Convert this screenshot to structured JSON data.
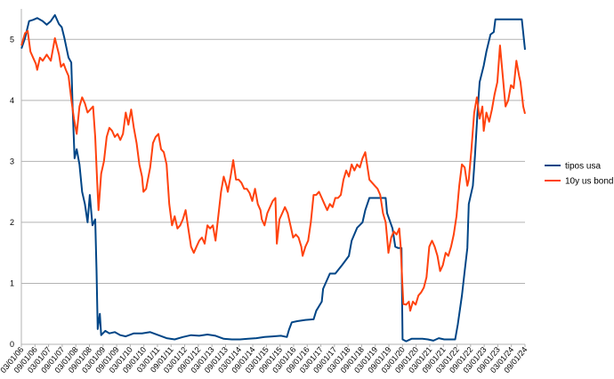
{
  "chart_data": {
    "type": "line",
    "title": "",
    "xlabel": "",
    "ylabel": "",
    "ylim": [
      0,
      5.5
    ],
    "yticks": [
      0,
      1,
      2,
      3,
      4,
      5
    ],
    "grid": "horizontal",
    "legend_position": "right",
    "x_range": [
      2006.167,
      2024.667
    ],
    "x_tick_labels": [
      "03/01/06",
      "09/01/06",
      "03/01/07",
      "09/01/07",
      "03/01/08",
      "09/01/08",
      "03/01/09",
      "09/01/09",
      "03/01/10",
      "09/01/10",
      "03/01/11",
      "09/01/11",
      "03/01/12",
      "09/01/12",
      "03/01/13",
      "09/01/13",
      "03/01/14",
      "09/01/14",
      "03/01/15",
      "09/01/15",
      "03/01/16",
      "09/01/16",
      "03/01/17",
      "09/01/17",
      "03/01/18",
      "09/01/18",
      "03/01/19",
      "09/01/19",
      "03/01/20",
      "09/01/20",
      "03/01/21",
      "09/01/21",
      "03/01/22",
      "09/01/22",
      "03/01/23",
      "09/01/23",
      "03/01/24",
      "09/01/24"
    ],
    "series": [
      {
        "name": "tipos usa",
        "color": "#004586",
        "points": [
          [
            2006.17,
            4.85
          ],
          [
            2006.3,
            5.02
          ],
          [
            2006.45,
            5.3
          ],
          [
            2006.6,
            5.32
          ],
          [
            2006.75,
            5.35
          ],
          [
            2006.95,
            5.3
          ],
          [
            2007.1,
            5.24
          ],
          [
            2007.25,
            5.3
          ],
          [
            2007.4,
            5.4
          ],
          [
            2007.55,
            5.25
          ],
          [
            2007.65,
            5.2
          ],
          [
            2007.75,
            5.02
          ],
          [
            2007.9,
            4.7
          ],
          [
            2008.0,
            4.62
          ],
          [
            2008.05,
            3.9
          ],
          [
            2008.12,
            3.05
          ],
          [
            2008.2,
            3.2
          ],
          [
            2008.3,
            2.95
          ],
          [
            2008.4,
            2.5
          ],
          [
            2008.5,
            2.3
          ],
          [
            2008.6,
            2.0
          ],
          [
            2008.68,
            2.45
          ],
          [
            2008.78,
            1.95
          ],
          [
            2008.88,
            2.05
          ],
          [
            2008.93,
            1.2
          ],
          [
            2008.97,
            0.25
          ],
          [
            2009.05,
            0.5
          ],
          [
            2009.1,
            0.15
          ],
          [
            2009.25,
            0.22
          ],
          [
            2009.4,
            0.18
          ],
          [
            2009.6,
            0.2
          ],
          [
            2009.8,
            0.15
          ],
          [
            2010.0,
            0.13
          ],
          [
            2010.3,
            0.18
          ],
          [
            2010.6,
            0.18
          ],
          [
            2010.9,
            0.2
          ],
          [
            2011.2,
            0.15
          ],
          [
            2011.5,
            0.1
          ],
          [
            2011.8,
            0.08
          ],
          [
            2012.1,
            0.12
          ],
          [
            2012.4,
            0.15
          ],
          [
            2012.7,
            0.14
          ],
          [
            2013.0,
            0.16
          ],
          [
            2013.3,
            0.14
          ],
          [
            2013.6,
            0.09
          ],
          [
            2013.9,
            0.08
          ],
          [
            2014.2,
            0.08
          ],
          [
            2014.5,
            0.09
          ],
          [
            2014.8,
            0.1
          ],
          [
            2015.1,
            0.12
          ],
          [
            2015.4,
            0.13
          ],
          [
            2015.7,
            0.14
          ],
          [
            2015.92,
            0.12
          ],
          [
            2016.0,
            0.24
          ],
          [
            2016.1,
            0.36
          ],
          [
            2016.3,
            0.38
          ],
          [
            2016.6,
            0.4
          ],
          [
            2016.9,
            0.41
          ],
          [
            2017.0,
            0.55
          ],
          [
            2017.2,
            0.7
          ],
          [
            2017.25,
            0.91
          ],
          [
            2017.5,
            1.16
          ],
          [
            2017.7,
            1.16
          ],
          [
            2017.95,
            1.3
          ],
          [
            2018.2,
            1.45
          ],
          [
            2018.3,
            1.7
          ],
          [
            2018.5,
            1.91
          ],
          [
            2018.7,
            2.0
          ],
          [
            2018.8,
            2.2
          ],
          [
            2018.95,
            2.4
          ],
          [
            2019.3,
            2.4
          ],
          [
            2019.55,
            2.4
          ],
          [
            2019.6,
            2.15
          ],
          [
            2019.8,
            1.9
          ],
          [
            2019.9,
            1.6
          ],
          [
            2020.0,
            1.58
          ],
          [
            2020.13,
            1.58
          ],
          [
            2020.17,
            0.08
          ],
          [
            2020.3,
            0.05
          ],
          [
            2020.5,
            0.09
          ],
          [
            2020.7,
            0.09
          ],
          [
            2020.9,
            0.09
          ],
          [
            2021.1,
            0.08
          ],
          [
            2021.3,
            0.06
          ],
          [
            2021.5,
            0.1
          ],
          [
            2021.7,
            0.08
          ],
          [
            2021.9,
            0.08
          ],
          [
            2022.1,
            0.08
          ],
          [
            2022.2,
            0.33
          ],
          [
            2022.35,
            0.8
          ],
          [
            2022.45,
            1.2
          ],
          [
            2022.55,
            1.58
          ],
          [
            2022.6,
            2.3
          ],
          [
            2022.75,
            2.6
          ],
          [
            2022.83,
            3.1
          ],
          [
            2022.92,
            3.8
          ],
          [
            2023.0,
            4.3
          ],
          [
            2023.15,
            4.57
          ],
          [
            2023.25,
            4.8
          ],
          [
            2023.4,
            5.08
          ],
          [
            2023.52,
            5.12
          ],
          [
            2023.58,
            5.33
          ],
          [
            2023.75,
            5.33
          ],
          [
            2024.0,
            5.33
          ],
          [
            2024.25,
            5.33
          ],
          [
            2024.55,
            5.33
          ],
          [
            2024.667,
            4.83
          ]
        ]
      },
      {
        "name": "10y us bond",
        "color": "#ff420e",
        "points": [
          [
            2006.17,
            4.9
          ],
          [
            2006.3,
            5.1
          ],
          [
            2006.4,
            5.14
          ],
          [
            2006.5,
            4.8
          ],
          [
            2006.6,
            4.7
          ],
          [
            2006.7,
            4.6
          ],
          [
            2006.75,
            4.5
          ],
          [
            2006.85,
            4.7
          ],
          [
            2006.95,
            4.65
          ],
          [
            2007.1,
            4.75
          ],
          [
            2007.25,
            4.65
          ],
          [
            2007.4,
            5.02
          ],
          [
            2007.55,
            4.75
          ],
          [
            2007.62,
            4.55
          ],
          [
            2007.72,
            4.6
          ],
          [
            2007.8,
            4.5
          ],
          [
            2007.9,
            4.4
          ],
          [
            2008.0,
            4.02
          ],
          [
            2008.1,
            3.7
          ],
          [
            2008.2,
            3.45
          ],
          [
            2008.3,
            3.9
          ],
          [
            2008.4,
            4.05
          ],
          [
            2008.5,
            3.95
          ],
          [
            2008.6,
            3.8
          ],
          [
            2008.7,
            3.85
          ],
          [
            2008.8,
            3.9
          ],
          [
            2008.88,
            3.4
          ],
          [
            2008.95,
            2.7
          ],
          [
            2009.0,
            2.2
          ],
          [
            2009.1,
            2.8
          ],
          [
            2009.2,
            3.0
          ],
          [
            2009.3,
            3.4
          ],
          [
            2009.4,
            3.55
          ],
          [
            2009.5,
            3.5
          ],
          [
            2009.6,
            3.4
          ],
          [
            2009.7,
            3.45
          ],
          [
            2009.8,
            3.35
          ],
          [
            2009.9,
            3.45
          ],
          [
            2010.0,
            3.8
          ],
          [
            2010.1,
            3.6
          ],
          [
            2010.2,
            3.85
          ],
          [
            2010.3,
            3.55
          ],
          [
            2010.4,
            3.3
          ],
          [
            2010.5,
            2.95
          ],
          [
            2010.6,
            2.75
          ],
          [
            2010.65,
            2.5
          ],
          [
            2010.75,
            2.55
          ],
          [
            2010.9,
            2.9
          ],
          [
            2011.0,
            3.3
          ],
          [
            2011.1,
            3.4
          ],
          [
            2011.2,
            3.45
          ],
          [
            2011.3,
            3.2
          ],
          [
            2011.4,
            3.15
          ],
          [
            2011.5,
            2.95
          ],
          [
            2011.6,
            2.3
          ],
          [
            2011.7,
            1.95
          ],
          [
            2011.8,
            2.1
          ],
          [
            2011.9,
            1.9
          ],
          [
            2012.0,
            1.95
          ],
          [
            2012.1,
            2.05
          ],
          [
            2012.2,
            2.2
          ],
          [
            2012.3,
            1.9
          ],
          [
            2012.4,
            1.6
          ],
          [
            2012.5,
            1.5
          ],
          [
            2012.6,
            1.6
          ],
          [
            2012.7,
            1.7
          ],
          [
            2012.8,
            1.75
          ],
          [
            2012.9,
            1.65
          ],
          [
            2013.0,
            1.95
          ],
          [
            2013.1,
            1.9
          ],
          [
            2013.2,
            1.95
          ],
          [
            2013.3,
            1.7
          ],
          [
            2013.4,
            2.1
          ],
          [
            2013.5,
            2.5
          ],
          [
            2013.6,
            2.75
          ],
          [
            2013.7,
            2.6
          ],
          [
            2013.75,
            2.5
          ],
          [
            2013.85,
            2.75
          ],
          [
            2013.95,
            3.02
          ],
          [
            2014.05,
            2.7
          ],
          [
            2014.15,
            2.7
          ],
          [
            2014.25,
            2.65
          ],
          [
            2014.35,
            2.55
          ],
          [
            2014.45,
            2.55
          ],
          [
            2014.55,
            2.48
          ],
          [
            2014.65,
            2.35
          ],
          [
            2014.75,
            2.55
          ],
          [
            2014.85,
            2.3
          ],
          [
            2014.95,
            2.2
          ],
          [
            2015.0,
            2.05
          ],
          [
            2015.1,
            1.95
          ],
          [
            2015.2,
            2.15
          ],
          [
            2015.3,
            2.25
          ],
          [
            2015.4,
            2.35
          ],
          [
            2015.5,
            2.4
          ],
          [
            2015.55,
            1.65
          ],
          [
            2015.65,
            2.05
          ],
          [
            2015.75,
            2.15
          ],
          [
            2015.85,
            2.25
          ],
          [
            2015.95,
            2.15
          ],
          [
            2016.05,
            1.95
          ],
          [
            2016.15,
            1.75
          ],
          [
            2016.25,
            1.8
          ],
          [
            2016.35,
            1.75
          ],
          [
            2016.45,
            1.6
          ],
          [
            2016.5,
            1.45
          ],
          [
            2016.6,
            1.6
          ],
          [
            2016.7,
            1.7
          ],
          [
            2016.8,
            2.0
          ],
          [
            2016.9,
            2.45
          ],
          [
            2017.0,
            2.45
          ],
          [
            2017.1,
            2.5
          ],
          [
            2017.2,
            2.4
          ],
          [
            2017.3,
            2.3
          ],
          [
            2017.4,
            2.2
          ],
          [
            2017.5,
            2.3
          ],
          [
            2017.6,
            2.25
          ],
          [
            2017.7,
            2.4
          ],
          [
            2017.8,
            2.4
          ],
          [
            2017.9,
            2.45
          ],
          [
            2018.0,
            2.7
          ],
          [
            2018.1,
            2.85
          ],
          [
            2018.2,
            2.75
          ],
          [
            2018.3,
            2.95
          ],
          [
            2018.4,
            2.85
          ],
          [
            2018.5,
            2.95
          ],
          [
            2018.6,
            2.9
          ],
          [
            2018.7,
            3.05
          ],
          [
            2018.8,
            3.15
          ],
          [
            2018.85,
            3.0
          ],
          [
            2018.95,
            2.7
          ],
          [
            2019.05,
            2.65
          ],
          [
            2019.15,
            2.6
          ],
          [
            2019.25,
            2.55
          ],
          [
            2019.35,
            2.45
          ],
          [
            2019.45,
            2.15
          ],
          [
            2019.55,
            2.0
          ],
          [
            2019.6,
            1.75
          ],
          [
            2019.65,
            1.5
          ],
          [
            2019.75,
            1.75
          ],
          [
            2019.85,
            1.85
          ],
          [
            2019.95,
            1.8
          ],
          [
            2020.05,
            1.9
          ],
          [
            2020.1,
            1.6
          ],
          [
            2020.15,
            1.1
          ],
          [
            2020.2,
            0.66
          ],
          [
            2020.3,
            0.65
          ],
          [
            2020.4,
            0.7
          ],
          [
            2020.45,
            0.55
          ],
          [
            2020.55,
            0.7
          ],
          [
            2020.65,
            0.65
          ],
          [
            2020.75,
            0.8
          ],
          [
            2020.85,
            0.85
          ],
          [
            2020.95,
            0.93
          ],
          [
            2021.05,
            1.1
          ],
          [
            2021.15,
            1.6
          ],
          [
            2021.25,
            1.7
          ],
          [
            2021.35,
            1.6
          ],
          [
            2021.45,
            1.45
          ],
          [
            2021.55,
            1.2
          ],
          [
            2021.65,
            1.3
          ],
          [
            2021.75,
            1.5
          ],
          [
            2021.85,
            1.45
          ],
          [
            2021.95,
            1.6
          ],
          [
            2022.05,
            1.8
          ],
          [
            2022.15,
            2.1
          ],
          [
            2022.25,
            2.6
          ],
          [
            2022.35,
            2.95
          ],
          [
            2022.45,
            2.9
          ],
          [
            2022.55,
            2.6
          ],
          [
            2022.6,
            2.7
          ],
          [
            2022.7,
            3.2
          ],
          [
            2022.8,
            3.8
          ],
          [
            2022.9,
            4.05
          ],
          [
            2023.0,
            3.7
          ],
          [
            2023.1,
            3.9
          ],
          [
            2023.15,
            3.5
          ],
          [
            2023.25,
            3.8
          ],
          [
            2023.35,
            3.65
          ],
          [
            2023.45,
            3.85
          ],
          [
            2023.55,
            4.1
          ],
          [
            2023.65,
            4.3
          ],
          [
            2023.75,
            4.9
          ],
          [
            2023.85,
            4.4
          ],
          [
            2023.95,
            3.9
          ],
          [
            2024.05,
            4.0
          ],
          [
            2024.15,
            4.25
          ],
          [
            2024.25,
            4.2
          ],
          [
            2024.35,
            4.65
          ],
          [
            2024.45,
            4.4
          ],
          [
            2024.5,
            4.3
          ],
          [
            2024.6,
            3.9
          ],
          [
            2024.667,
            3.78
          ]
        ]
      }
    ]
  }
}
